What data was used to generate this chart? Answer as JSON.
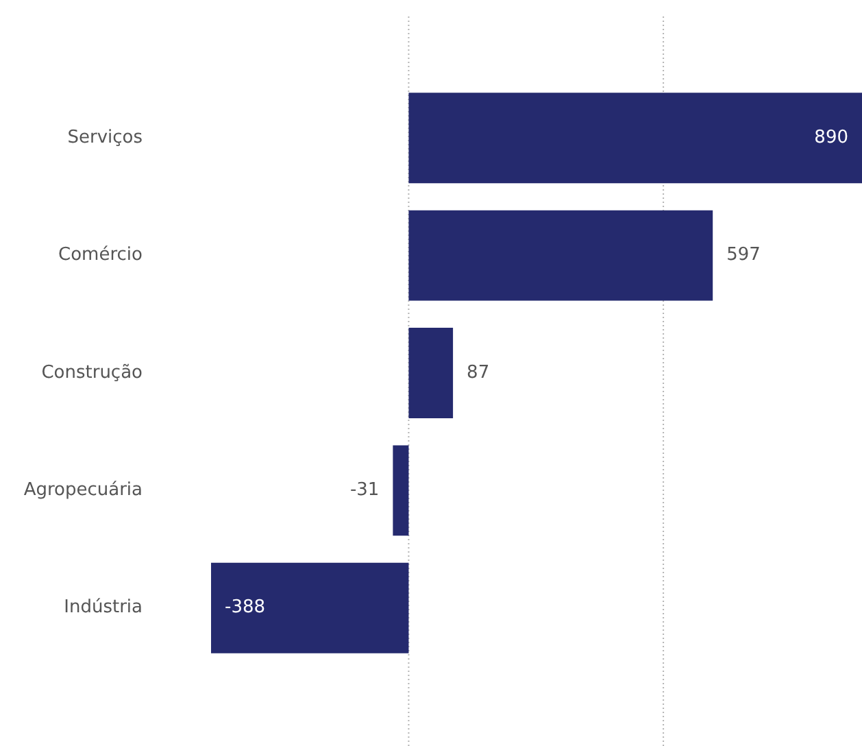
{
  "chart_data": {
    "type": "bar",
    "orientation": "horizontal",
    "categories": [
      "Serviços",
      "Comércio",
      "Construção",
      "Agropecuária",
      "Indústria"
    ],
    "values": [
      890,
      597,
      87,
      -31,
      -388
    ],
    "color": "#252a6e",
    "xlim": [
      -388,
      890
    ],
    "ref_lines": [
      {
        "axis": "x",
        "value": 0,
        "color": "#b4b4b4",
        "line_style": "dotted"
      },
      {
        "axis": "x",
        "value": 500,
        "color": "#b4b4b4",
        "line_style": "dotted"
      }
    ],
    "tick_labels": "y",
    "data_labels": true,
    "legend": false
  }
}
